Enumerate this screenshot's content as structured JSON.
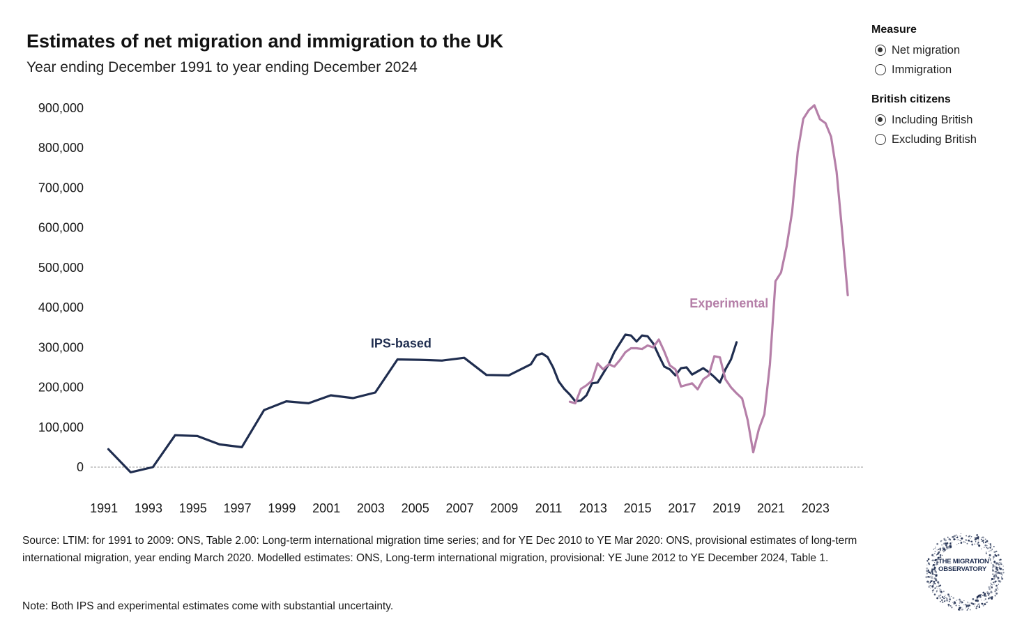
{
  "header": {
    "title": "Estimates of net migration and immigration to the UK",
    "subtitle": "Year ending December 1991 to year ending December 2024"
  },
  "controls": {
    "measure": {
      "title": "Measure",
      "options": [
        {
          "label": "Net migration",
          "checked": true
        },
        {
          "label": "Immigration",
          "checked": false
        }
      ]
    },
    "british": {
      "title": "British citizens",
      "options": [
        {
          "label": "Including British",
          "checked": true
        },
        {
          "label": "Excluding British",
          "checked": false
        }
      ]
    }
  },
  "footer": {
    "source": "Source: LTIM: for 1991 to 2009: ONS, Table 2.00: Long-term international migration time series; and for YE Dec 2010 to YE Mar 2020: ONS, provisional estimates of long-term international migration, year ending March 2020. Modelled estimates: ONS, Long-term international migration, provisional: YE June 2012 to YE December 2024, Table 1.",
    "note": "Note: Both IPS and experimental estimates come with substantial uncertainty.",
    "logo_text": "THE MIGRATION OBSERVATORY"
  },
  "colors": {
    "ips": "#1f2d4f",
    "experimental": "#b57fa8",
    "zero_line": "#999999"
  },
  "chart_data": {
    "type": "line",
    "x_axis": {
      "range": [
        1990.4,
        2025.2
      ],
      "ticks": [
        1991,
        1993,
        1995,
        1997,
        1999,
        2001,
        2003,
        2005,
        2007,
        2009,
        2011,
        2013,
        2015,
        2017,
        2019,
        2021,
        2023
      ]
    },
    "y_axis": {
      "range": [
        0,
        900000
      ],
      "ticks": [
        0,
        100000,
        200000,
        300000,
        400000,
        500000,
        600000,
        700000,
        800000,
        900000
      ],
      "tick_labels": [
        "0",
        "100,000",
        "200,000",
        "300,000",
        "400,000",
        "500,000",
        "600,000",
        "700,000",
        "800,000",
        "900,000"
      ]
    },
    "grid": false,
    "series": [
      {
        "name": "IPS-based",
        "points": [
          [
            1991.2,
            45000
          ],
          [
            1992.2,
            -13000
          ],
          [
            1993.2,
            0
          ],
          [
            1994.2,
            80000
          ],
          [
            1995.2,
            78000
          ],
          [
            1996.2,
            57000
          ],
          [
            1997.2,
            50000
          ],
          [
            1998.2,
            143000
          ],
          [
            1999.2,
            165000
          ],
          [
            2000.2,
            160000
          ],
          [
            2001.2,
            180000
          ],
          [
            2002.2,
            173000
          ],
          [
            2003.2,
            187000
          ],
          [
            2004.2,
            270000
          ],
          [
            2005.2,
            269000
          ],
          [
            2006.2,
            267000
          ],
          [
            2007.2,
            274000
          ],
          [
            2008.2,
            231000
          ],
          [
            2009.2,
            230000
          ],
          [
            2010.2,
            258000
          ],
          [
            2010.45,
            280000
          ],
          [
            2010.7,
            285000
          ],
          [
            2010.95,
            276000
          ],
          [
            2011.2,
            250000
          ],
          [
            2011.45,
            215000
          ],
          [
            2011.7,
            196000
          ],
          [
            2011.95,
            182000
          ],
          [
            2012.2,
            165000
          ],
          [
            2012.45,
            167000
          ],
          [
            2012.7,
            180000
          ],
          [
            2012.95,
            210000
          ],
          [
            2013.2,
            212000
          ],
          [
            2013.45,
            235000
          ],
          [
            2013.7,
            258000
          ],
          [
            2013.95,
            288000
          ],
          [
            2014.2,
            310000
          ],
          [
            2014.45,
            332000
          ],
          [
            2014.7,
            330000
          ],
          [
            2014.95,
            315000
          ],
          [
            2015.2,
            330000
          ],
          [
            2015.45,
            328000
          ],
          [
            2015.7,
            310000
          ],
          [
            2015.95,
            280000
          ],
          [
            2016.2,
            252000
          ],
          [
            2016.45,
            245000
          ],
          [
            2016.7,
            230000
          ],
          [
            2016.95,
            248000
          ],
          [
            2017.2,
            250000
          ],
          [
            2017.45,
            232000
          ],
          [
            2017.7,
            240000
          ],
          [
            2017.95,
            248000
          ],
          [
            2018.2,
            238000
          ],
          [
            2018.45,
            226000
          ],
          [
            2018.7,
            212000
          ],
          [
            2018.95,
            245000
          ],
          [
            2019.2,
            270000
          ],
          [
            2019.45,
            313000
          ]
        ]
      },
      {
        "name": "Experimental",
        "points": [
          [
            2011.95,
            164000
          ],
          [
            2012.2,
            160000
          ],
          [
            2012.45,
            196000
          ],
          [
            2012.7,
            205000
          ],
          [
            2012.95,
            217000
          ],
          [
            2013.2,
            260000
          ],
          [
            2013.45,
            245000
          ],
          [
            2013.7,
            258000
          ],
          [
            2013.95,
            252000
          ],
          [
            2014.2,
            268000
          ],
          [
            2014.45,
            288000
          ],
          [
            2014.7,
            298000
          ],
          [
            2014.95,
            298000
          ],
          [
            2015.2,
            296000
          ],
          [
            2015.45,
            305000
          ],
          [
            2015.7,
            300000
          ],
          [
            2015.95,
            320000
          ],
          [
            2016.2,
            290000
          ],
          [
            2016.45,
            255000
          ],
          [
            2016.7,
            245000
          ],
          [
            2016.95,
            202000
          ],
          [
            2017.2,
            206000
          ],
          [
            2017.45,
            210000
          ],
          [
            2017.7,
            195000
          ],
          [
            2017.95,
            220000
          ],
          [
            2018.2,
            230000
          ],
          [
            2018.45,
            278000
          ],
          [
            2018.7,
            275000
          ],
          [
            2018.95,
            220000
          ],
          [
            2019.2,
            200000
          ],
          [
            2019.45,
            185000
          ],
          [
            2019.7,
            172000
          ],
          [
            2019.95,
            118000
          ],
          [
            2020.2,
            37000
          ],
          [
            2020.45,
            95000
          ],
          [
            2020.7,
            133000
          ],
          [
            2020.95,
            257000
          ],
          [
            2021.2,
            466000
          ],
          [
            2021.45,
            488000
          ],
          [
            2021.7,
            553000
          ],
          [
            2021.95,
            640000
          ],
          [
            2022.2,
            790000
          ],
          [
            2022.45,
            873000
          ],
          [
            2022.7,
            895000
          ],
          [
            2022.95,
            907000
          ],
          [
            2023.2,
            872000
          ],
          [
            2023.45,
            862000
          ],
          [
            2023.7,
            828000
          ],
          [
            2023.95,
            740000
          ],
          [
            2024.2,
            590000
          ],
          [
            2024.45,
            431000
          ]
        ]
      }
    ],
    "annotations": [
      {
        "text": "IPS-based",
        "series": "IPS-based",
        "x": 2003.0,
        "y": 300000
      },
      {
        "text": "Experimental",
        "series": "Experimental",
        "x": 2019.0,
        "y": 400000
      }
    ]
  }
}
